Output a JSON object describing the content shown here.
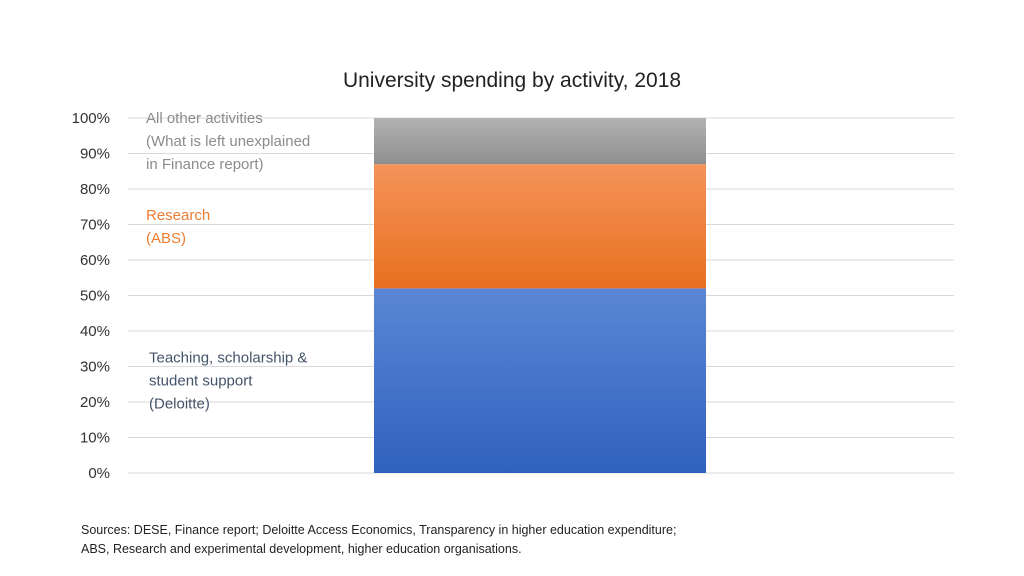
{
  "chart_data": {
    "type": "bar",
    "stacked": true,
    "title": "University spending by activity, 2018",
    "xlabel": "",
    "ylabel": "",
    "ylim": [
      0,
      100
    ],
    "y_ticks": [
      "0%",
      "10%",
      "20%",
      "30%",
      "40%",
      "50%",
      "60%",
      "70%",
      "80%",
      "90%",
      "100%"
    ],
    "grid": true,
    "legend": "none",
    "categories": [
      ""
    ],
    "series": [
      {
        "key": "teaching",
        "values": [
          52
        ],
        "color_top": "#5b86d6",
        "color_bottom": "#2f62bd",
        "label_color": "#44546a",
        "label_lines": [
          "Teaching, scholarship &",
          "student support",
          "(Deloitte)"
        ]
      },
      {
        "key": "research",
        "values": [
          35
        ],
        "color_top": "#f4935a",
        "color_bottom": "#e8701f",
        "label_color": "#ed7d31",
        "label_lines": [
          "Research",
          "(ABS)"
        ]
      },
      {
        "key": "other",
        "values": [
          13
        ],
        "color_top": "#b3b3b3",
        "color_bottom": "#8e8e8e",
        "label_color": "#8c8c8c",
        "label_lines": [
          "All other activities",
          "(What is left unexplained",
          "in Finance report)"
        ]
      }
    ]
  },
  "sources": {
    "line1": "Sources: DESE, Finance report; Deloitte Access Economics, Transparency in higher education expenditure;",
    "line2": "ABS, Research and experimental development, higher education organisations."
  }
}
